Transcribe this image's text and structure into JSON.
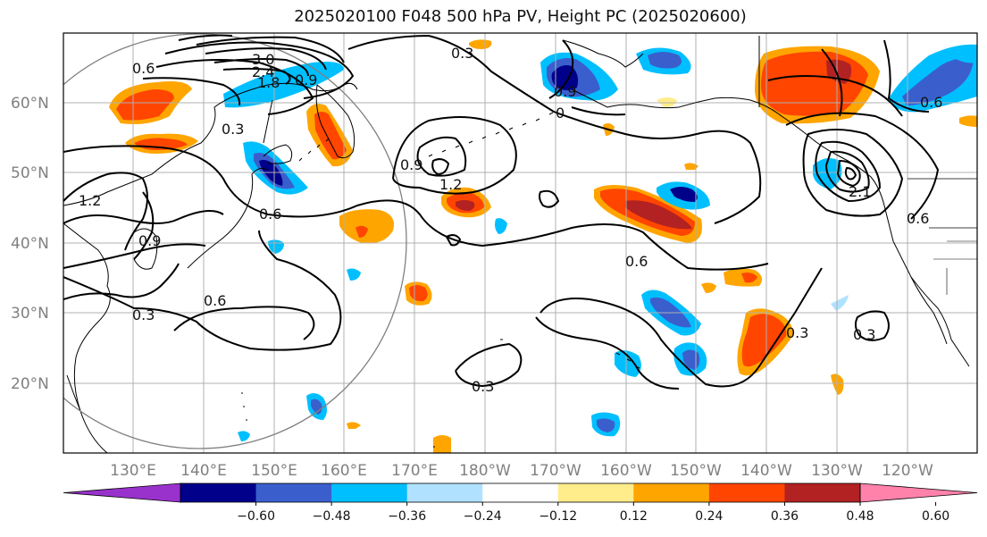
{
  "title": "2025020100 F048 500 hPa PV, Height PC (2025020600)",
  "map": {
    "lat_labels": [
      "60°N",
      "50°N",
      "40°N",
      "30°N",
      "20°N"
    ],
    "lon_labels": [
      "130°E",
      "140°E",
      "150°E",
      "160°E",
      "170°E",
      "180°W",
      "170°W",
      "160°W",
      "150°W",
      "140°W",
      "130°W",
      "120°W"
    ],
    "contour_labels": [
      "3.0",
      "2.4",
      "1.8",
      "0.9",
      "0.6",
      "0.3",
      "1.2",
      "0.9",
      "0.6",
      "0.6",
      "0.3",
      "0.9",
      "0.3",
      "1.2",
      "0",
      "0.6",
      "0.6",
      "0.3",
      "0.3",
      "0.6",
      "0.3",
      "2.1",
      "0.9"
    ],
    "shading_colors": {
      "deep_purple": "#9932cc",
      "navy": "#00008b",
      "royal_blue": "#3a5fcd",
      "deep_sky": "#00bfff",
      "light_sky": "#b0e2ff",
      "white": "#ffffff",
      "light_yellow": "#ffec8b",
      "orange": "#ffa500",
      "orange_red": "#ff4500",
      "firebrick": "#b22222",
      "pink": "#ff82ab"
    }
  },
  "colorbar": {
    "ticks": [
      "−0.60",
      "−0.48",
      "−0.36",
      "−0.24",
      "−0.12",
      "0.12",
      "0.24",
      "0.36",
      "0.48",
      "0.60"
    ],
    "colors": [
      "#9932cc",
      "#00008b",
      "#3a5fcd",
      "#00bfff",
      "#b0e2ff",
      "#ffffff",
      "#ffec8b",
      "#ffa500",
      "#ff4500",
      "#b22222",
      "#ff82ab"
    ]
  }
}
